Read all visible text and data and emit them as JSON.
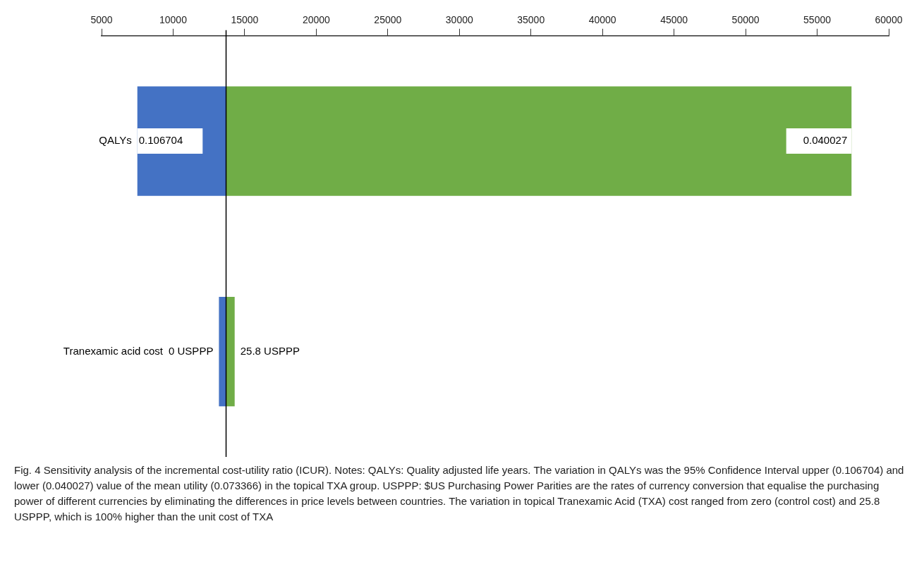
{
  "chart_data": {
    "type": "bar",
    "orientation": "horizontal",
    "categories": [
      "QALYs",
      "Tranexamic acid cost"
    ],
    "series": [
      {
        "color": "#4472c4",
        "base": [
          13700,
          13700
        ],
        "values": [
          -6200,
          -500
        ]
      },
      {
        "color": "#70ad47",
        "base": [
          13700,
          13700
        ],
        "values": [
          43700,
          600
        ]
      }
    ],
    "xlim": [
      5000,
      60000
    ],
    "xticks": [
      5000,
      10000,
      15000,
      20000,
      25000,
      30000,
      35000,
      40000,
      45000,
      50000,
      55000,
      60000
    ],
    "ref_lines": [
      {
        "axis": "x",
        "value": 13700,
        "color": "#000000"
      }
    ],
    "grid": false,
    "legend": false,
    "annotations": [
      {
        "text": "0.106704",
        "x": 7500,
        "y": "QALYs"
      },
      {
        "text": "0.040027",
        "x": 57400,
        "y": "QALYs"
      },
      {
        "text": "0 USPPP",
        "x": 13200,
        "y": "Tranexamic acid cost"
      },
      {
        "text": "25.8 USPPP",
        "x": 14300,
        "y": "Tranexamic acid cost"
      },
      "Fig. 4 Sensitivity analysis of the incremental cost-utility ratio (ICUR). Notes: QALYs: Quality adjusted life years. The variation in QALYs was the 95% Confidence Interval upper (0.106704) and lower (0.040027) value of the mean utility (0.073366) in the topical TXA group. USPPP: $US Purchasing Power Parities are the rates of currency conversion that equalise the purchasing power of different currencies by eliminating the differences in price levels between countries. The variation in topical Tranexamic Acid (TXA) cost ranged from zero (control cost) and 25.8 USPPP, which is 100% higher than the unit cost of TXA"
    ]
  }
}
